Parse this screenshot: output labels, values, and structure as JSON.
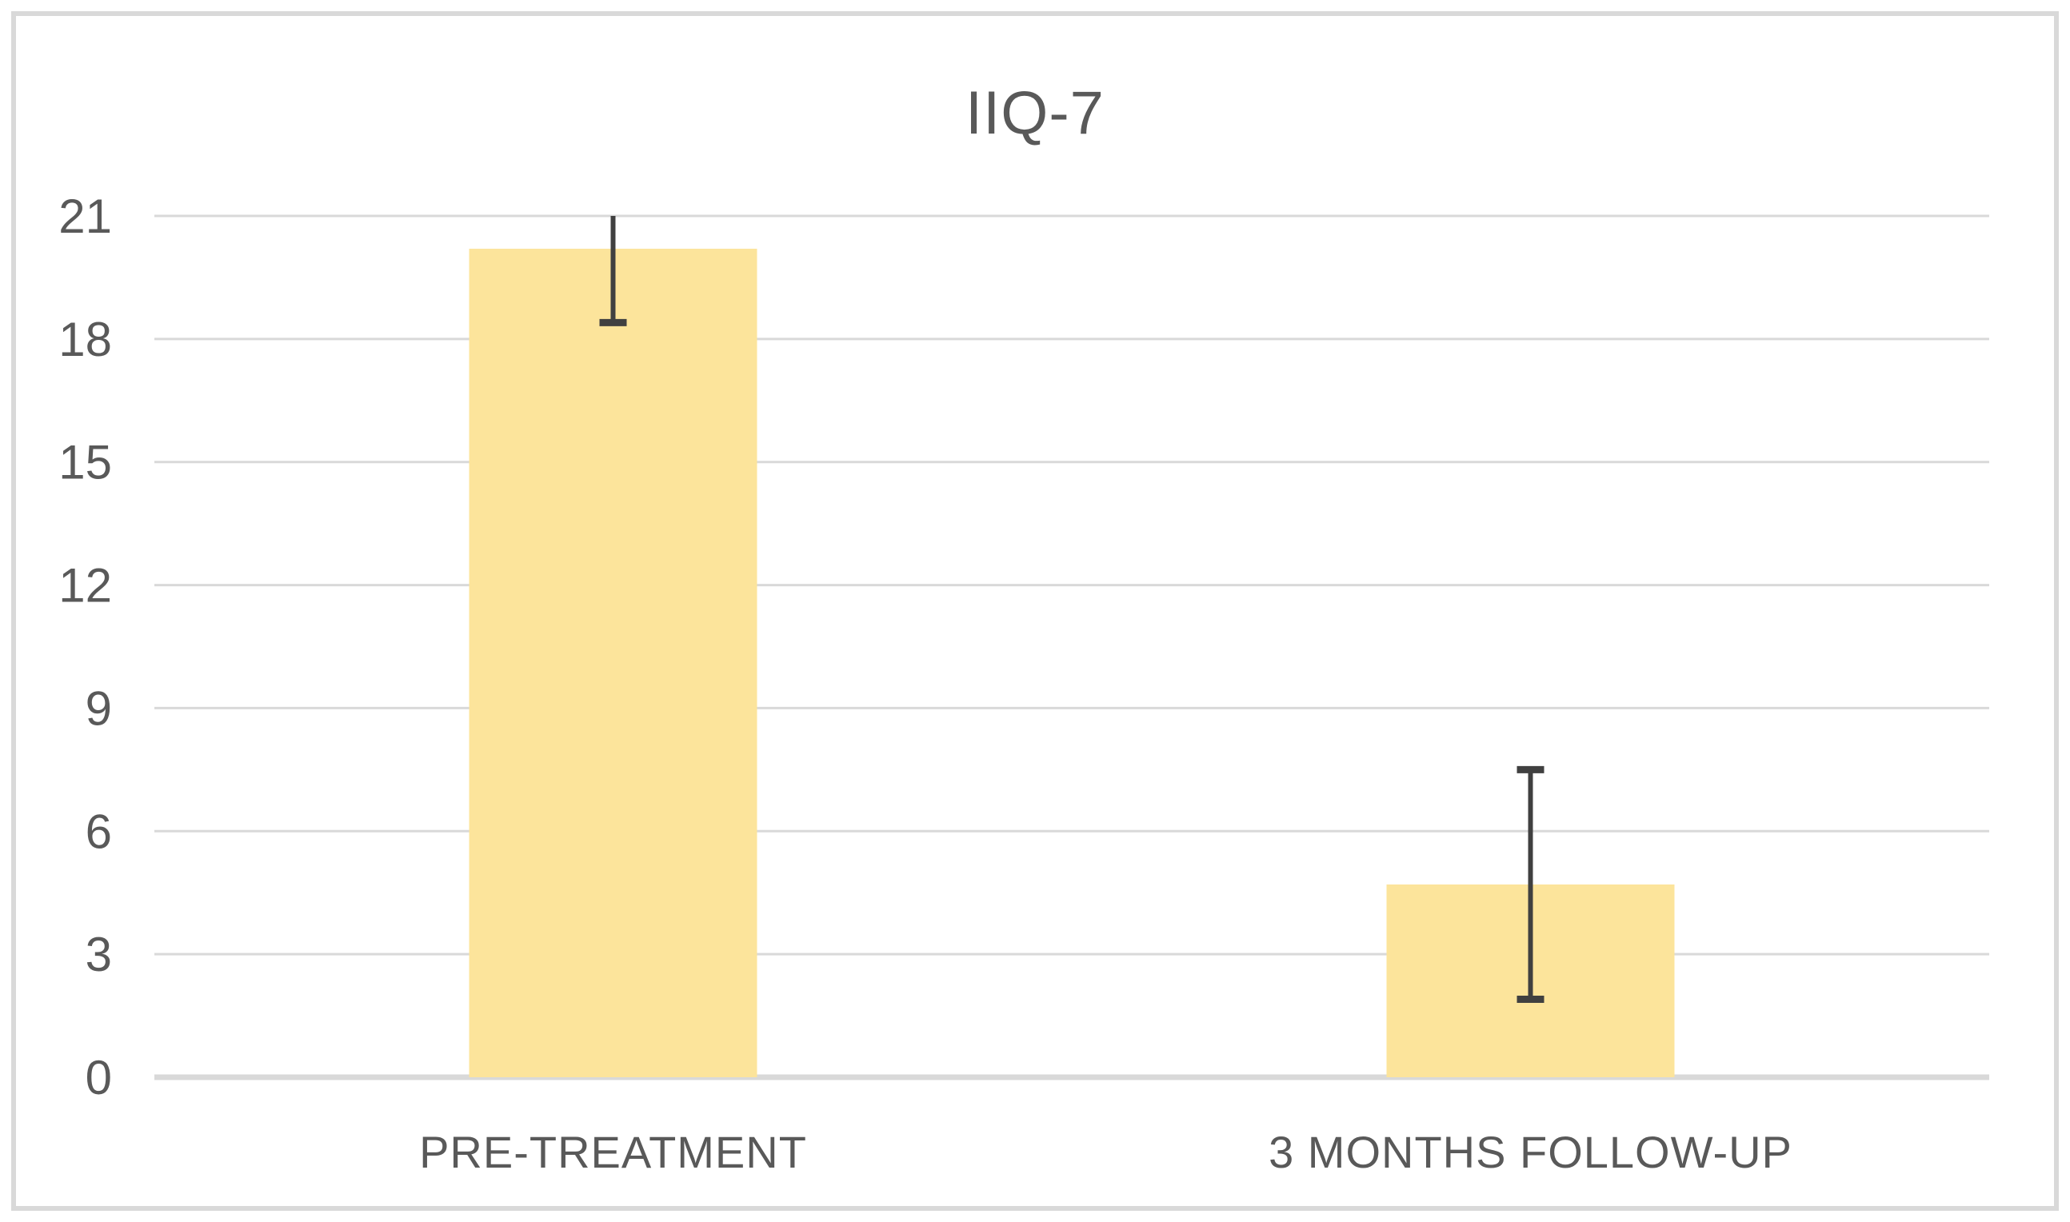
{
  "chart_data": {
    "type": "bar",
    "title": "IIQ-7",
    "categories": [
      "PRE-TREATMENT",
      "3 MONTHS FOLLOW-UP"
    ],
    "values": [
      20.2,
      4.7
    ],
    "error_bars": [
      {
        "low": 18.4,
        "high": 21.0,
        "cap_top": false,
        "cap_bottom": true
      },
      {
        "low": 1.9,
        "high": 7.5,
        "cap_top": true,
        "cap_bottom": true
      }
    ],
    "xlabel": "",
    "ylabel": "",
    "ylim": [
      0,
      21
    ],
    "yticks": [
      0,
      3,
      6,
      9,
      12,
      15,
      18,
      21
    ],
    "grid": true,
    "legend": false,
    "colors": {
      "bar_fill": "#fce49b",
      "gridline": "#d9d9d9",
      "axis_line": "#d9d9d9",
      "error_bar": "#404040",
      "tick_label": "#595959",
      "title": "#595959",
      "chart_border": "#d9d9d9",
      "background": "#ffffff"
    }
  }
}
